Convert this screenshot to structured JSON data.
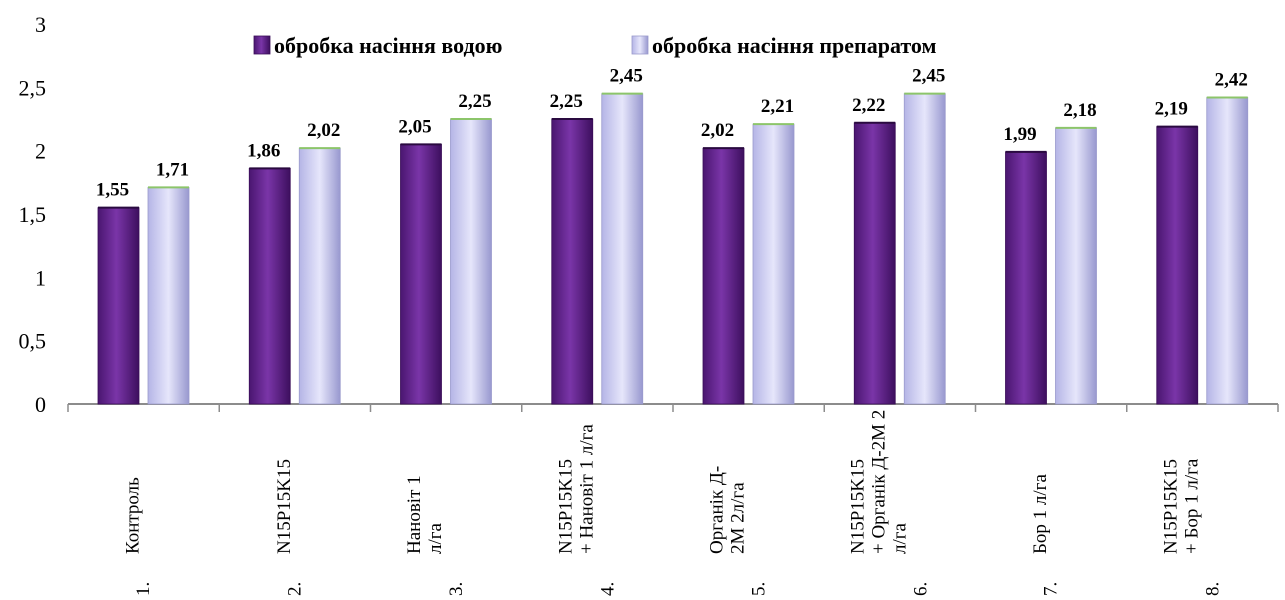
{
  "chart_data": {
    "type": "bar",
    "title": "",
    "xlabel": "",
    "ylabel": "",
    "ylim": [
      0,
      3
    ],
    "yticks": [
      "0",
      "0,5",
      "1",
      "1,5",
      "2",
      "2,5",
      "3"
    ],
    "ytick_values": [
      0,
      0.5,
      1,
      1.5,
      2,
      2.5,
      3
    ],
    "legend_position": "top",
    "categories": [
      [
        "1.",
        "Контроль"
      ],
      [
        "2.",
        "N15P15K15"
      ],
      [
        "3.",
        "Нановіт 1",
        "л/га"
      ],
      [
        "4.",
        "N15P15K15",
        "+ Нановіт 1 л/га"
      ],
      [
        "5.",
        "Органік Д-",
        "2М 2л/га"
      ],
      [
        "6.",
        "N15P15K15",
        "+ Органік Д-2М 2",
        "л/га"
      ],
      [
        "7.",
        "Бор 1 л/га"
      ],
      [
        "8.",
        "N15P15K15",
        "+ Бор 1 л/га"
      ]
    ],
    "series": [
      {
        "name": "обробка насіння водою",
        "color": "#6a2a93",
        "values": [
          1.55,
          1.86,
          2.05,
          2.25,
          2.02,
          2.22,
          1.99,
          2.19
        ],
        "labels": [
          "1,55",
          "1,86",
          "2,05",
          "2,25",
          "2,02",
          "2,22",
          "1,99",
          "2,19"
        ]
      },
      {
        "name": "обробка насіння  препаратом",
        "color": "#c9c9f2",
        "values": [
          1.71,
          2.02,
          2.25,
          2.45,
          2.21,
          2.45,
          2.18,
          2.42
        ],
        "labels": [
          "1,71",
          "2,02",
          "2,25",
          "2,45",
          "2,21",
          "2,45",
          "2,18",
          "2,42"
        ]
      }
    ]
  }
}
